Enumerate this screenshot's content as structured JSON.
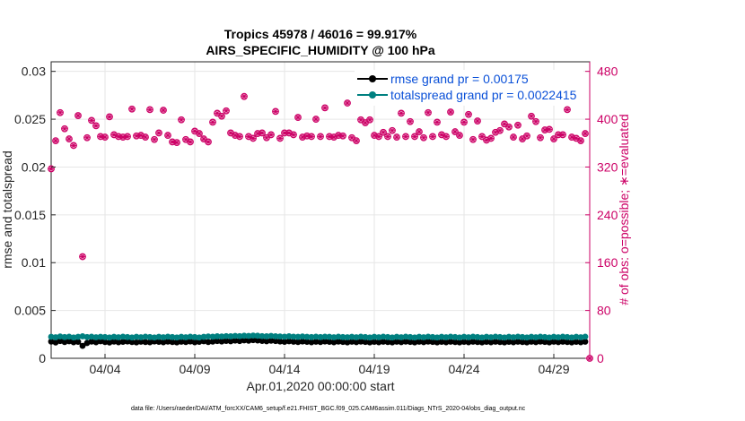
{
  "chart_data": {
    "type": "line",
    "title_line1": "Tropics 45978 / 46016 = 99.917%",
    "title_line2": "AIRS_SPECIFIC_HUMIDITY @ 100 hPa",
    "xlabel": "Apr.01,2020 00:00:00 start",
    "ylabel_left": "rmse and totalspread",
    "ylabel_right": "# of obs: o=possible; ∗=evaluated",
    "xlim": [
      1.0,
      31.0
    ],
    "ylim_left": [
      0,
      0.031
    ],
    "ylim_right": [
      0,
      496
    ],
    "x_tick_labels": [
      {
        "x": 4,
        "label": "04/04"
      },
      {
        "x": 9,
        "label": "04/09"
      },
      {
        "x": 14,
        "label": "04/14"
      },
      {
        "x": 19,
        "label": "04/19"
      },
      {
        "x": 24,
        "label": "04/24"
      },
      {
        "x": 29,
        "label": "04/29"
      }
    ],
    "y_left_ticks": [
      "0",
      "0.005",
      "0.01",
      "0.015",
      "0.02",
      "0.025",
      "0.03"
    ],
    "y_left_tick_values": [
      0,
      0.005,
      0.01,
      0.015,
      0.02,
      0.025,
      0.03
    ],
    "y_right_ticks": [
      "0",
      "80",
      "160",
      "240",
      "320",
      "400",
      "480"
    ],
    "y_right_tick_values": [
      0,
      80,
      160,
      240,
      320,
      400,
      480
    ],
    "footer": "data file: /Users/raeder/DAI/ATM_forcXX/CAM6_setup/f.e21.FHIST_BGC.f09_025.CAM6assim.011/Diags_NTrS_2020-04/obs_diag_output.nc",
    "legend": [
      {
        "label": "rmse grand pr = 0.00175",
        "color": "#000000"
      },
      {
        "label": "totalspread grand pr = 0.0022415",
        "color": "#008080"
      }
    ],
    "series": [
      {
        "name": "rmse",
        "axis": "left",
        "color": "#000000",
        "x": [
          1.0,
          1.25,
          1.5,
          1.75,
          2.0,
          2.25,
          2.5,
          2.75,
          3.0,
          3.25,
          3.5,
          3.75,
          4.0,
          4.25,
          4.5,
          4.75,
          5.0,
          5.25,
          5.5,
          5.75,
          6.0,
          6.25,
          6.5,
          6.75,
          7.0,
          7.25,
          7.5,
          7.75,
          8.0,
          8.25,
          8.5,
          8.75,
          9.0,
          9.25,
          9.5,
          9.75,
          10.0,
          10.25,
          10.5,
          10.75,
          11.0,
          11.25,
          11.5,
          11.75,
          12.0,
          12.25,
          12.5,
          12.75,
          13.0,
          13.25,
          13.5,
          13.75,
          14.0,
          14.25,
          14.5,
          14.75,
          15.0,
          15.25,
          15.5,
          15.75,
          16.0,
          16.25,
          16.5,
          16.75,
          17.0,
          17.25,
          17.5,
          17.75,
          18.0,
          18.25,
          18.5,
          18.75,
          19.0,
          19.25,
          19.5,
          19.75,
          20.0,
          20.25,
          20.5,
          20.75,
          21.0,
          21.25,
          21.5,
          21.75,
          22.0,
          22.25,
          22.5,
          22.75,
          23.0,
          23.25,
          23.5,
          23.75,
          24.0,
          24.25,
          24.5,
          24.75,
          25.0,
          25.25,
          25.5,
          25.75,
          26.0,
          26.25,
          26.5,
          26.75,
          27.0,
          27.25,
          27.5,
          27.75,
          28.0,
          28.25,
          28.5,
          28.75,
          29.0,
          29.25,
          29.5,
          29.75,
          30.0,
          30.25,
          30.5,
          30.75
        ],
        "values": [
          0.00175,
          0.00165,
          0.0018,
          0.0017,
          0.00178,
          0.00168,
          0.00172,
          0.0013,
          0.0016,
          0.00175,
          0.00168,
          0.00178,
          0.0017,
          0.00165,
          0.00175,
          0.00168,
          0.00172,
          0.00176,
          0.0017,
          0.00166,
          0.00174,
          0.0017,
          0.00168,
          0.00176,
          0.00172,
          0.00168,
          0.00175,
          0.0017,
          0.00166,
          0.00174,
          0.0017,
          0.00176,
          0.00168,
          0.00172,
          0.00178,
          0.0017,
          0.00175,
          0.0018,
          0.00176,
          0.00182,
          0.00178,
          0.00185,
          0.0018,
          0.00188,
          0.00184,
          0.0019,
          0.00186,
          0.00182,
          0.00178,
          0.00184,
          0.0018,
          0.00176,
          0.00172,
          0.00178,
          0.00174,
          0.0017,
          0.00176,
          0.00172,
          0.00168,
          0.00174,
          0.0017,
          0.00176,
          0.00172,
          0.00168,
          0.00175,
          0.00171,
          0.00167,
          0.00173,
          0.00169,
          0.00175,
          0.00171,
          0.00166,
          0.00172,
          0.00168,
          0.00174,
          0.0017,
          0.00166,
          0.00173,
          0.00169,
          0.00175,
          0.00171,
          0.00167,
          0.00173,
          0.00169,
          0.00175,
          0.00171,
          0.00167,
          0.00172,
          0.00168,
          0.00174,
          0.0017,
          0.00166,
          0.00172,
          0.00168,
          0.00174,
          0.0017,
          0.00166,
          0.00172,
          0.00168,
          0.00174,
          0.0017,
          0.00166,
          0.00172,
          0.00168,
          0.00174,
          0.0017,
          0.00167,
          0.00173,
          0.00169,
          0.00175,
          0.00171,
          0.00167,
          0.00173,
          0.00169,
          0.00174,
          0.0017,
          0.00166,
          0.00172,
          0.00168,
          0.00174
        ]
      },
      {
        "name": "totalspread",
        "axis": "left",
        "color": "#008080",
        "x": [
          1.0,
          1.25,
          1.5,
          1.75,
          2.0,
          2.25,
          2.5,
          2.75,
          3.0,
          3.25,
          3.5,
          3.75,
          4.0,
          4.25,
          4.5,
          4.75,
          5.0,
          5.25,
          5.5,
          5.75,
          6.0,
          6.25,
          6.5,
          6.75,
          7.0,
          7.25,
          7.5,
          7.75,
          8.0,
          8.25,
          8.5,
          8.75,
          9.0,
          9.25,
          9.5,
          9.75,
          10.0,
          10.25,
          10.5,
          10.75,
          11.0,
          11.25,
          11.5,
          11.75,
          12.0,
          12.25,
          12.5,
          12.75,
          13.0,
          13.25,
          13.5,
          13.75,
          14.0,
          14.25,
          14.5,
          14.75,
          15.0,
          15.25,
          15.5,
          15.75,
          16.0,
          16.25,
          16.5,
          16.75,
          17.0,
          17.25,
          17.5,
          17.75,
          18.0,
          18.25,
          18.5,
          18.75,
          19.0,
          19.25,
          19.5,
          19.75,
          20.0,
          20.25,
          20.5,
          20.75,
          21.0,
          21.25,
          21.5,
          21.75,
          22.0,
          22.25,
          22.5,
          22.75,
          23.0,
          23.25,
          23.5,
          23.75,
          24.0,
          24.25,
          24.5,
          24.75,
          25.0,
          25.25,
          25.5,
          25.75,
          26.0,
          26.25,
          26.5,
          26.75,
          27.0,
          27.25,
          27.5,
          27.75,
          28.0,
          28.25,
          28.5,
          28.75,
          29.0,
          29.25,
          29.5,
          29.75,
          30.0,
          30.25,
          30.5,
          30.75
        ],
        "values": [
          0.00225,
          0.0022,
          0.00228,
          0.00222,
          0.00226,
          0.00218,
          0.00224,
          0.0023,
          0.00222,
          0.00226,
          0.0022,
          0.00224,
          0.00222,
          0.00218,
          0.00224,
          0.0022,
          0.00226,
          0.00222,
          0.00218,
          0.00224,
          0.0022,
          0.00226,
          0.00222,
          0.00218,
          0.00224,
          0.0022,
          0.00226,
          0.00222,
          0.00218,
          0.00224,
          0.0022,
          0.00226,
          0.00222,
          0.00218,
          0.00224,
          0.00228,
          0.00226,
          0.0023,
          0.00228,
          0.00232,
          0.0023,
          0.00234,
          0.00232,
          0.00236,
          0.00234,
          0.00238,
          0.00236,
          0.00232,
          0.0023,
          0.00234,
          0.0023,
          0.00228,
          0.00226,
          0.0023,
          0.00226,
          0.00224,
          0.00228,
          0.00224,
          0.00222,
          0.00226,
          0.00222,
          0.00226,
          0.00224,
          0.0022,
          0.00226,
          0.00222,
          0.0022,
          0.00224,
          0.0022,
          0.00226,
          0.00222,
          0.00218,
          0.00224,
          0.0022,
          0.00226,
          0.00222,
          0.00218,
          0.00224,
          0.0022,
          0.00226,
          0.00222,
          0.00218,
          0.00224,
          0.0022,
          0.00226,
          0.00222,
          0.00218,
          0.00224,
          0.0022,
          0.00226,
          0.00222,
          0.00218,
          0.00224,
          0.0022,
          0.00226,
          0.00222,
          0.00218,
          0.00224,
          0.0022,
          0.00226,
          0.00222,
          0.00218,
          0.00224,
          0.0022,
          0.00226,
          0.00222,
          0.00218,
          0.00224,
          0.0022,
          0.00226,
          0.00222,
          0.00218,
          0.00224,
          0.0022,
          0.00226,
          0.00222,
          0.00218,
          0.00224,
          0.0022,
          0.00226
        ]
      },
      {
        "name": "obs_possible",
        "axis": "right",
        "color": "#cc0066",
        "x": [
          1.0,
          1.25,
          1.5,
          1.75,
          2.0,
          2.25,
          2.5,
          2.75,
          3.0,
          3.25,
          3.5,
          3.75,
          4.0,
          4.25,
          4.5,
          4.75,
          5.0,
          5.25,
          5.5,
          5.75,
          6.0,
          6.25,
          6.5,
          6.75,
          7.0,
          7.25,
          7.5,
          7.75,
          8.0,
          8.25,
          8.5,
          8.75,
          9.0,
          9.25,
          9.5,
          9.75,
          10.0,
          10.25,
          10.5,
          10.75,
          11.0,
          11.25,
          11.5,
          11.75,
          12.0,
          12.25,
          12.5,
          12.75,
          13.0,
          13.25,
          13.5,
          13.75,
          14.0,
          14.25,
          14.5,
          14.75,
          15.0,
          15.25,
          15.5,
          15.75,
          16.0,
          16.25,
          16.5,
          16.75,
          17.0,
          17.25,
          17.5,
          17.75,
          18.0,
          18.25,
          18.5,
          18.75,
          19.0,
          19.25,
          19.5,
          19.75,
          20.0,
          20.25,
          20.5,
          20.75,
          21.0,
          21.25,
          21.5,
          21.75,
          22.0,
          22.25,
          22.5,
          22.75,
          23.0,
          23.25,
          23.5,
          23.75,
          24.0,
          24.25,
          24.5,
          24.75,
          25.0,
          25.25,
          25.5,
          25.75,
          26.0,
          26.25,
          26.5,
          26.75,
          27.0,
          27.25,
          27.5,
          27.75,
          28.0,
          28.25,
          28.5,
          28.75,
          29.0,
          29.25,
          29.5,
          29.75,
          30.0,
          30.25,
          30.5,
          30.75,
          31.0
        ],
        "values": [
          317,
          364,
          411,
          384,
          367,
          356,
          406,
          170,
          369,
          398,
          389,
          371,
          370,
          404,
          374,
          371,
          370,
          371,
          417,
          372,
          373,
          370,
          416,
          366,
          377,
          415,
          373,
          362,
          361,
          399,
          366,
          362,
          380,
          376,
          367,
          362,
          395,
          410,
          405,
          414,
          377,
          373,
          371,
          438,
          371,
          368,
          376,
          377,
          369,
          374,
          413,
          368,
          377,
          377,
          374,
          403,
          370,
          372,
          371,
          400,
          371,
          419,
          371,
          370,
          373,
          372,
          427,
          369,
          364,
          399,
          394,
          399,
          373,
          371,
          378,
          371,
          381,
          370,
          410,
          371,
          396,
          371,
          379,
          369,
          411,
          371,
          395,
          374,
          371,
          412,
          379,
          373,
          395,
          408,
          366,
          397,
          371,
          365,
          368,
          378,
          381,
          392,
          387,
          370,
          390,
          367,
          372,
          405,
          396,
          369,
          382,
          383,
          367,
          374,
          374,
          416,
          370,
          368,
          364,
          376,
          -1
        ],
        "note_last": 0
      }
    ]
  }
}
